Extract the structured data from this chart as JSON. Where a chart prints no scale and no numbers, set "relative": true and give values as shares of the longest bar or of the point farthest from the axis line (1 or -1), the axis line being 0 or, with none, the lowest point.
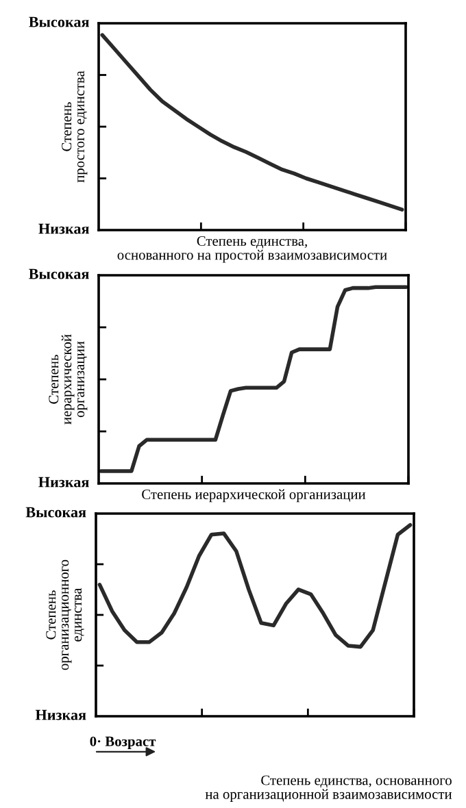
{
  "chart_data": [
    {
      "type": "line",
      "relative": true,
      "xlabel": "Степень единства,\nоснованного на простой взаимозависимости",
      "ylabel": "Степень\nпростого единства",
      "annotations": [
        "Высокая",
        "Низкая"
      ],
      "categories": [
        null,
        null,
        null,
        null,
        null,
        null,
        null,
        null,
        null,
        null,
        null,
        null,
        null,
        null,
        null,
        null,
        null,
        null,
        null,
        null,
        null,
        null,
        null,
        null,
        null,
        null
      ],
      "series": [
        {
          "color": "#2a2a2a",
          "values": [
            1.0,
            0.93,
            0.86,
            0.79,
            0.72,
            0.66,
            0.615,
            0.57,
            0.53,
            0.49,
            0.455,
            0.425,
            0.4,
            0.37,
            0.34,
            0.31,
            0.29,
            0.265,
            0.245,
            0.225,
            0.205,
            0.185,
            0.165,
            0.145,
            0.125,
            0.105
          ]
        }
      ],
      "line_style": "solid",
      "marker": "none"
    },
    {
      "type": "line",
      "relative": true,
      "xlabel": "Степень иерархической организации",
      "ylabel": "Степень\nиерархической\nорганизации",
      "annotations": [
        "Высокая",
        "Низкая"
      ],
      "categories": [
        null,
        null,
        null,
        null,
        null,
        null,
        null,
        null,
        null,
        null,
        null,
        null,
        null,
        null,
        null,
        null,
        null,
        null,
        null,
        null,
        null,
        null,
        null,
        null,
        null,
        null,
        null,
        null,
        null,
        null,
        null,
        null,
        null,
        null,
        null,
        null,
        null,
        null,
        null,
        null,
        null
      ],
      "series": [
        {
          "color": "#2a2a2a",
          "values": [
            0.063,
            0.063,
            0.063,
            0.063,
            0.063,
            0.19,
            0.222,
            0.222,
            0.222,
            0.222,
            0.222,
            0.222,
            0.222,
            0.222,
            0.222,
            0.222,
            0.349,
            0.471,
            0.481,
            0.487,
            0.487,
            0.487,
            0.487,
            0.487,
            0.519,
            0.667,
            0.683,
            0.683,
            0.683,
            0.683,
            0.683,
            0.899,
            0.984,
            0.995,
            0.995,
            0.995,
            1.0,
            1.0,
            1.0,
            1.0,
            1.0
          ]
        }
      ],
      "line_style": "solid",
      "marker": "none"
    },
    {
      "type": "line",
      "relative": true,
      "xlabel": "Степень единства, основанного\nна организационной взаимозависимости",
      "ylabel": "Степень\nорганизационного\nединства",
      "annotations": [
        "Высокая",
        "Низкая",
        "0· Возраст"
      ],
      "categories": [
        null,
        null,
        null,
        null,
        null,
        null,
        null,
        null,
        null,
        null,
        null,
        null,
        null,
        null,
        null,
        null,
        null,
        null,
        null,
        null,
        null,
        null,
        null,
        null,
        null,
        null
      ],
      "series": [
        {
          "color": "#2a2a2a",
          "values": [
            0.688,
            0.55,
            0.45,
            0.388,
            0.388,
            0.438,
            0.538,
            0.675,
            0.838,
            0.95,
            0.956,
            0.863,
            0.663,
            0.488,
            0.475,
            0.588,
            0.663,
            0.638,
            0.538,
            0.425,
            0.369,
            0.363,
            0.45,
            0.7,
            0.95,
            1.0
          ]
        }
      ],
      "line_style": "solid",
      "marker": "none"
    }
  ]
}
